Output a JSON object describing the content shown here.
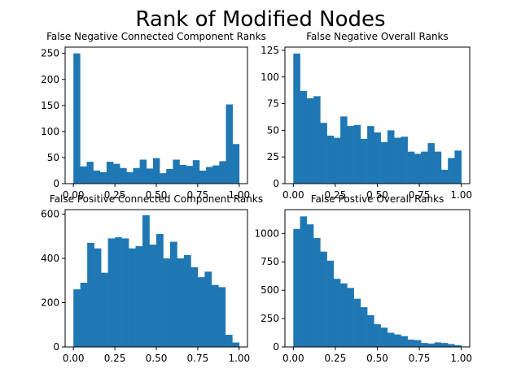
{
  "figure_title": "Rank of Modified Nodes",
  "colors": {
    "bar": "#1f77b4",
    "axes": "#000000",
    "background": "#ffffff"
  },
  "chart_data": [
    {
      "type": "bar",
      "title": "False Negative Connected Component Ranks",
      "xlim": [
        -0.05,
        1.05
      ],
      "ylim": [
        0,
        262
      ],
      "x_ticks": [
        0,
        0.25,
        0.5,
        0.75,
        1
      ],
      "x_tick_labels": [
        "0.00",
        "0.25",
        "0.50",
        "0.75",
        "1.00"
      ],
      "y_ticks": [
        0,
        50,
        100,
        150,
        200,
        250
      ],
      "y_tick_labels": [
        "0",
        "50",
        "100",
        "150",
        "200",
        "250"
      ],
      "bin_range": [
        0,
        1
      ],
      "values": [
        250,
        33,
        42,
        25,
        22,
        42,
        38,
        30,
        22,
        30,
        46,
        29,
        49,
        20,
        28,
        46,
        36,
        34,
        45,
        25,
        32,
        35,
        43,
        152,
        76
      ]
    },
    {
      "type": "bar",
      "title": "False Negative Overall Ranks",
      "xlim": [
        -0.05,
        1.05
      ],
      "ylim": [
        0,
        128
      ],
      "x_ticks": [
        0,
        0.25,
        0.5,
        0.75,
        1
      ],
      "x_tick_labels": [
        "0.00",
        "0.25",
        "0.50",
        "0.75",
        "1.00"
      ],
      "y_ticks": [
        0,
        25,
        50,
        75,
        100,
        125
      ],
      "y_tick_labels": [
        "0",
        "25",
        "50",
        "75",
        "100",
        "125"
      ],
      "bin_range": [
        0,
        1
      ],
      "values": [
        122,
        87,
        80,
        82,
        57,
        45,
        43,
        63,
        54,
        55,
        42,
        54,
        48,
        39,
        50,
        43,
        44,
        30,
        28,
        30,
        38,
        30,
        13,
        24,
        31
      ]
    },
    {
      "type": "bar",
      "title": "False Positive Connected Component Ranks",
      "xlim": [
        -0.05,
        1.05
      ],
      "ylim": [
        0,
        620
      ],
      "x_ticks": [
        0,
        0.25,
        0.5,
        0.75,
        1
      ],
      "x_tick_labels": [
        "0.00",
        "0.25",
        "0.50",
        "0.75",
        "1.00"
      ],
      "y_ticks": [
        0,
        200,
        400,
        600
      ],
      "y_tick_labels": [
        "0",
        "200",
        "400",
        "600"
      ],
      "bin_range": [
        0,
        1
      ],
      "values": [
        260,
        290,
        470,
        445,
        335,
        490,
        495,
        490,
        445,
        455,
        595,
        462,
        510,
        400,
        475,
        400,
        415,
        360,
        315,
        340,
        280,
        270,
        55,
        20
      ]
    },
    {
      "type": "bar",
      "title": "False Postive Overall Ranks",
      "xlim": [
        -0.05,
        1.05
      ],
      "ylim": [
        0,
        1210
      ],
      "x_ticks": [
        0,
        0.25,
        0.5,
        0.75,
        1
      ],
      "x_tick_labels": [
        "0.00",
        "0.25",
        "0.50",
        "0.75",
        "1.00"
      ],
      "y_ticks": [
        0,
        250,
        500,
        750,
        1000
      ],
      "y_tick_labels": [
        "0",
        "250",
        "500",
        "750",
        "1000"
      ],
      "bin_range": [
        0,
        1
      ],
      "values": [
        1040,
        1150,
        1080,
        960,
        840,
        760,
        600,
        560,
        520,
        425,
        350,
        280,
        200,
        170,
        125,
        110,
        95,
        65,
        60,
        35,
        30,
        40,
        35,
        25,
        15
      ]
    }
  ]
}
